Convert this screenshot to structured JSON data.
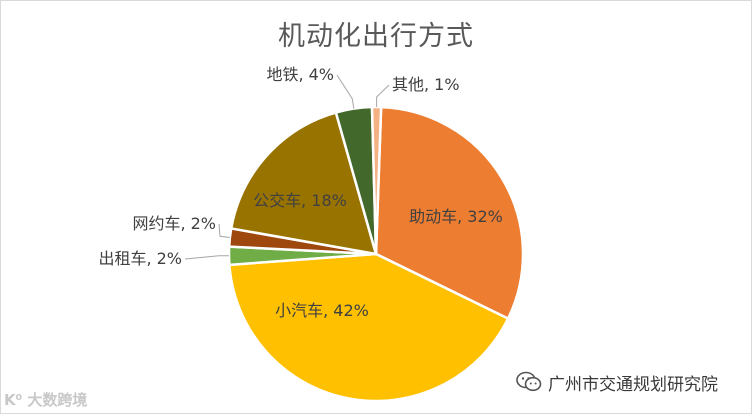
{
  "chart_data": {
    "type": "pie",
    "title": "机动化出行方式",
    "slices": [
      {
        "label": "助动车, 32%",
        "value": 32,
        "color": "#ED7D31"
      },
      {
        "label": "小汽车, 42%",
        "value": 42,
        "color": "#FFC000"
      },
      {
        "label": "出租车, 2%",
        "value": 2,
        "color": "#70AD47"
      },
      {
        "label": "网约车, 2%",
        "value": 2,
        "color": "#9E480E"
      },
      {
        "label": "公交车, 18%",
        "value": 18,
        "color": "#997300"
      },
      {
        "label": "地铁, 4%",
        "value": 4,
        "color": "#43682B"
      },
      {
        "label": "其他, 1%",
        "value": 1,
        "color": "#F4B183"
      }
    ]
  },
  "watermark": {
    "left": "K⁰ 大数跨境",
    "right": "广州市交通规划研究院",
    "right_icon": "wechat-icon"
  }
}
